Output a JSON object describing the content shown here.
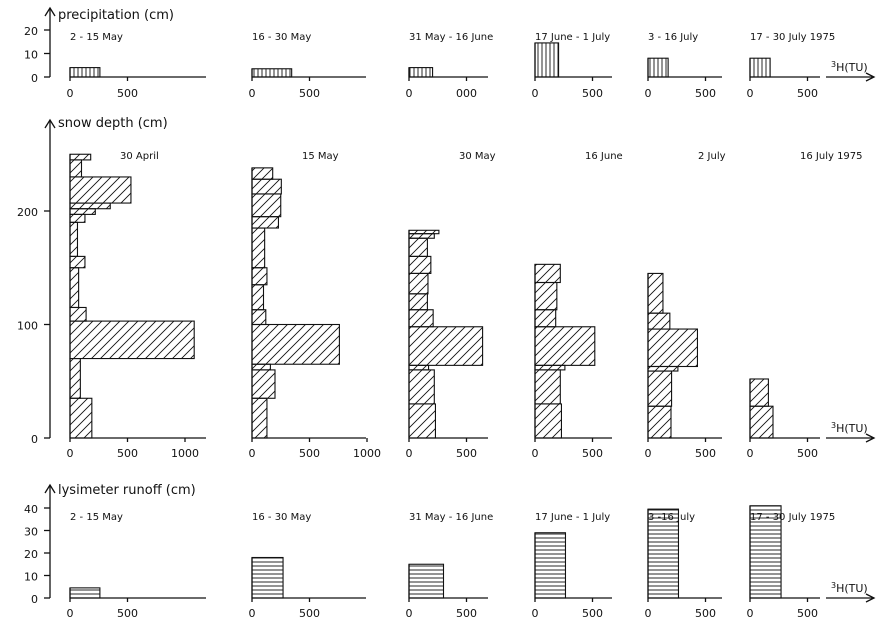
{
  "chart_data": [
    {
      "type": "bar",
      "orientation": "horizontal",
      "title": "precipitation (cm)",
      "xlabel": "3H(TU)",
      "xlabel_sup": "3",
      "xlabel_main": "H(TU)",
      "hatch": "vertical",
      "ylim": [
        0,
        25
      ],
      "yticks": [
        "20",
        "10",
        "0"
      ],
      "panels": [
        {
          "label": "2 - 15 May",
          "xticks": [
            "0",
            "500"
          ],
          "bars": [
            {
              "y0": 0,
              "y1": 4,
              "tu": 260
            }
          ]
        },
        {
          "label": "16 - 30 May",
          "xticks": [
            "0",
            "500"
          ],
          "bars": [
            {
              "y0": 0,
              "y1": 3.5,
              "tu": 345
            }
          ]
        },
        {
          "label": "31 May - 16 June",
          "xticks": [
            "0",
            "000"
          ],
          "bars": [
            {
              "y0": 0,
              "y1": 4,
              "tu": 205
            }
          ]
        },
        {
          "label": "17 June - 1 July",
          "xticks": [
            "0",
            "500"
          ],
          "bars": [
            {
              "y0": 0,
              "y1": 14.5,
              "tu": 205
            }
          ]
        },
        {
          "label": "3 - 16 July",
          "xticks": [
            "0",
            "500"
          ],
          "bars": [
            {
              "y0": 0,
              "y1": 8,
              "tu": 175
            }
          ]
        },
        {
          "label": "17 - 30 July 1975",
          "xticks": [
            "0",
            "500"
          ],
          "bars": [
            {
              "y0": 0,
              "y1": 8,
              "tu": 175
            }
          ]
        }
      ]
    },
    {
      "type": "bar",
      "orientation": "horizontal",
      "title": "snow depth (cm)",
      "xlabel": "3H(TU)",
      "xlabel_sup": "3",
      "xlabel_main": "H(TU)",
      "hatch": "diagonal",
      "ylim": [
        0,
        275
      ],
      "yticks": [
        "200",
        "100",
        "0"
      ],
      "panels": [
        {
          "label": "30 April",
          "xticks": [
            "0",
            "500",
            "1000"
          ],
          "bars": [
            {
              "y0": 0,
              "y1": 35,
              "tu": 190
            },
            {
              "y0": 35,
              "y1": 70,
              "tu": 90
            },
            {
              "y0": 70,
              "y1": 103,
              "tu": 1080
            },
            {
              "y0": 103,
              "y1": 115,
              "tu": 140
            },
            {
              "y0": 115,
              "y1": 150,
              "tu": 75
            },
            {
              "y0": 150,
              "y1": 160,
              "tu": 130
            },
            {
              "y0": 160,
              "y1": 190,
              "tu": 65
            },
            {
              "y0": 190,
              "y1": 197,
              "tu": 130
            },
            {
              "y0": 197,
              "y1": 202,
              "tu": 220
            },
            {
              "y0": 202,
              "y1": 207,
              "tu": 350
            },
            {
              "y0": 207,
              "y1": 230,
              "tu": 530
            },
            {
              "y0": 230,
              "y1": 245,
              "tu": 100
            },
            {
              "y0": 245,
              "y1": 250,
              "tu": 180
            }
          ]
        },
        {
          "label": "15 May",
          "xticks": [
            "0",
            "500",
            "1000"
          ],
          "bars": [
            {
              "y0": 0,
              "y1": 35,
              "tu": 130
            },
            {
              "y0": 35,
              "y1": 60,
              "tu": 200
            },
            {
              "y0": 60,
              "y1": 65,
              "tu": 160
            },
            {
              "y0": 65,
              "y1": 100,
              "tu": 760
            },
            {
              "y0": 100,
              "y1": 113,
              "tu": 120
            },
            {
              "y0": 113,
              "y1": 135,
              "tu": 100
            },
            {
              "y0": 135,
              "y1": 150,
              "tu": 130
            },
            {
              "y0": 150,
              "y1": 185,
              "tu": 110
            },
            {
              "y0": 185,
              "y1": 195,
              "tu": 230
            },
            {
              "y0": 195,
              "y1": 215,
              "tu": 250
            },
            {
              "y0": 215,
              "y1": 228,
              "tu": 255
            },
            {
              "y0": 228,
              "y1": 238,
              "tu": 180
            }
          ]
        },
        {
          "label": "30 May",
          "xticks": [
            "0",
            "500"
          ],
          "bars": [
            {
              "y0": 0,
              "y1": 30,
              "tu": 230
            },
            {
              "y0": 30,
              "y1": 60,
              "tu": 220
            },
            {
              "y0": 60,
              "y1": 64,
              "tu": 170
            },
            {
              "y0": 64,
              "y1": 98,
              "tu": 640
            },
            {
              "y0": 98,
              "y1": 113,
              "tu": 210
            },
            {
              "y0": 113,
              "y1": 127,
              "tu": 160
            },
            {
              "y0": 127,
              "y1": 145,
              "tu": 165
            },
            {
              "y0": 145,
              "y1": 160,
              "tu": 190
            },
            {
              "y0": 160,
              "y1": 176,
              "tu": 160
            },
            {
              "y0": 176,
              "y1": 180,
              "tu": 220
            },
            {
              "y0": 180,
              "y1": 183,
              "tu": 260
            }
          ]
        },
        {
          "label": "16 June",
          "xticks": [
            "0",
            "500"
          ],
          "bars": [
            {
              "y0": 0,
              "y1": 30,
              "tu": 230
            },
            {
              "y0": 30,
              "y1": 60,
              "tu": 220
            },
            {
              "y0": 60,
              "y1": 64,
              "tu": 260
            },
            {
              "y0": 64,
              "y1": 98,
              "tu": 520
            },
            {
              "y0": 98,
              "y1": 113,
              "tu": 180
            },
            {
              "y0": 113,
              "y1": 137,
              "tu": 190
            },
            {
              "y0": 137,
              "y1": 153,
              "tu": 220
            }
          ]
        },
        {
          "label": "2 July",
          "xticks": [
            "0",
            "500"
          ],
          "bars": [
            {
              "y0": 0,
              "y1": 28,
              "tu": 200
            },
            {
              "y0": 28,
              "y1": 59,
              "tu": 205
            },
            {
              "y0": 59,
              "y1": 63,
              "tu": 260
            },
            {
              "y0": 63,
              "y1": 96,
              "tu": 430
            },
            {
              "y0": 96,
              "y1": 110,
              "tu": 190
            },
            {
              "y0": 110,
              "y1": 145,
              "tu": 130
            }
          ]
        },
        {
          "label": "16 July 1975",
          "xticks": [
            "0",
            "500"
          ],
          "bars": [
            {
              "y0": 0,
              "y1": 28,
              "tu": 200
            },
            {
              "y0": 28,
              "y1": 52,
              "tu": 160
            }
          ]
        }
      ]
    },
    {
      "type": "bar",
      "orientation": "horizontal",
      "title": "lysimeter runoff (cm)",
      "xlabel": "3H(TU)",
      "xlabel_sup": "3",
      "xlabel_main": "H(TU)",
      "hatch": "horizontal",
      "ylim": [
        0,
        45
      ],
      "yticks": [
        "40",
        "30",
        "20",
        "10",
        "0"
      ],
      "panels": [
        {
          "label": "2 - 15 May",
          "xticks": [
            "0",
            "500"
          ],
          "bars": [
            {
              "y0": 0,
              "y1": 4.5,
              "tu": 260
            }
          ]
        },
        {
          "label": "16 - 30 May",
          "xticks": [
            "0",
            "500"
          ],
          "bars": [
            {
              "y0": 0,
              "y1": 18,
              "tu": 270
            }
          ]
        },
        {
          "label": "31 May - 16 June",
          "xticks": [
            "0",
            "500"
          ],
          "bars": [
            {
              "y0": 0,
              "y1": 15,
              "tu": 300
            }
          ]
        },
        {
          "label": "17 June - 1 July",
          "xticks": [
            "0",
            "500"
          ],
          "bars": [
            {
              "y0": 0,
              "y1": 29,
              "tu": 265
            }
          ]
        },
        {
          "label": "3 -16 July",
          "xticks": [
            "0",
            "500"
          ],
          "bars": [
            {
              "y0": 0,
              "y1": 39.5,
              "tu": 265
            }
          ]
        },
        {
          "label": "17 - 30 July 1975",
          "xticks": [
            "0",
            "500"
          ],
          "bars": [
            {
              "y0": 0,
              "y1": 41,
              "tu": 270
            }
          ]
        }
      ]
    }
  ]
}
